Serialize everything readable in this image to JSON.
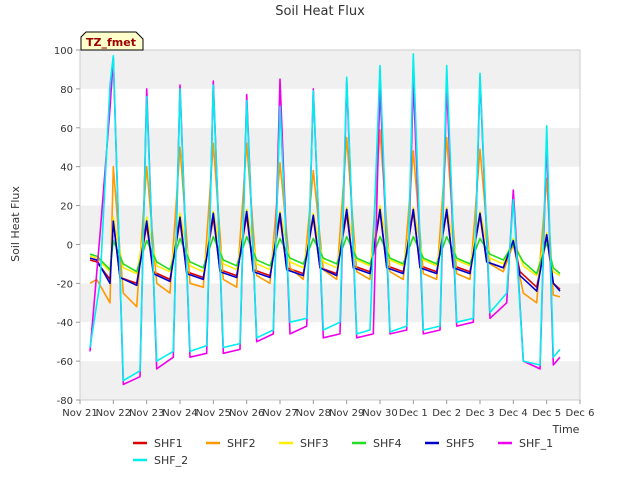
{
  "chart_data": {
    "type": "line",
    "title": "Soil Heat Flux",
    "xlabel": "Time",
    "ylabel": "Soil Heat Flux",
    "badge": "TZ_fmet",
    "xlim": [
      0,
      15
    ],
    "ylim": [
      -80,
      100
    ],
    "x_ticks": [
      {
        "v": 0,
        "label": "Nov 21"
      },
      {
        "v": 1,
        "label": "Nov 22"
      },
      {
        "v": 2,
        "label": "Nov 23"
      },
      {
        "v": 3,
        "label": "Nov 24"
      },
      {
        "v": 4,
        "label": "Nov 25"
      },
      {
        "v": 5,
        "label": "Nov 26"
      },
      {
        "v": 6,
        "label": "Nov 27"
      },
      {
        "v": 7,
        "label": "Nov 28"
      },
      {
        "v": 8,
        "label": "Nov 29"
      },
      {
        "v": 9,
        "label": "Nov 30"
      },
      {
        "v": 10,
        "label": "Dec 1"
      },
      {
        "v": 11,
        "label": "Dec 2"
      },
      {
        "v": 12,
        "label": "Dec 3"
      },
      {
        "v": 13,
        "label": "Dec 4"
      },
      {
        "v": 14,
        "label": "Dec 5"
      },
      {
        "v": 15,
        "label": "Dec 6"
      }
    ],
    "y_ticks": [
      -80,
      -60,
      -40,
      -20,
      0,
      20,
      40,
      60,
      80,
      100
    ],
    "grid": "horizontal bands",
    "legend": "bottom",
    "series_colors": {
      "SHF1": "#dd0000",
      "SHF2": "#ff9900",
      "SHF3": "#ffee00",
      "SHF4": "#22dd22",
      "SHF5": "#0000cc",
      "SHF_1": "#ee00ee",
      "SHF_2": "#00eeee"
    },
    "series": [
      {
        "name": "SHF1",
        "x": [
          0.3,
          0.5,
          0.9,
          1.0,
          1.2,
          1.7,
          2.0,
          2.2,
          2.7,
          3.0,
          3.2,
          3.7,
          4.0,
          4.2,
          4.7,
          5.0,
          5.2,
          5.7,
          6.0,
          6.2,
          6.7,
          7.0,
          7.2,
          7.7,
          8.0,
          8.2,
          8.7,
          9.0,
          9.2,
          9.7,
          10.0,
          10.2,
          10.7,
          11.0,
          11.2,
          11.7,
          12.0,
          12.2,
          12.7,
          13.0,
          13.2,
          13.7,
          14.0,
          14.2,
          14.4
        ],
        "y": [
          -8,
          -9,
          -18,
          12,
          -17,
          -20,
          10,
          -14,
          -18,
          12,
          -14,
          -17,
          14,
          -13,
          -16,
          15,
          -13,
          -16,
          14,
          -12,
          -15,
          14,
          -12,
          -15,
          16,
          -11,
          -14,
          17,
          -11,
          -14,
          17,
          -11,
          -14,
          17,
          -11,
          -14,
          15,
          -9,
          -12,
          2,
          -14,
          -22,
          4,
          -20,
          -23
        ]
      },
      {
        "name": "SHF2",
        "x": [
          0.3,
          0.5,
          0.9,
          1.0,
          1.3,
          1.7,
          2.0,
          2.3,
          2.7,
          3.0,
          3.3,
          3.7,
          4.0,
          4.3,
          4.7,
          5.0,
          5.3,
          5.7,
          6.0,
          6.3,
          6.7,
          7.0,
          7.3,
          7.7,
          8.0,
          8.3,
          8.7,
          9.0,
          9.3,
          9.7,
          10.0,
          10.3,
          10.7,
          11.0,
          11.3,
          11.7,
          12.0,
          12.3,
          12.7,
          13.0,
          13.3,
          13.7,
          14.0,
          14.2,
          14.4
        ],
        "y": [
          -20,
          -18,
          -30,
          40,
          -25,
          -32,
          40,
          -20,
          -25,
          50,
          -20,
          -22,
          52,
          -18,
          -22,
          52,
          -16,
          -20,
          42,
          -12,
          -18,
          38,
          -13,
          -18,
          55,
          -14,
          -18,
          59,
          -14,
          -18,
          48,
          -15,
          -18,
          55,
          -15,
          -18,
          49,
          -10,
          -14,
          0,
          -25,
          -30,
          34,
          -26,
          -27
        ]
      },
      {
        "name": "SHF3",
        "x": [
          0.3,
          0.5,
          0.9,
          1.0,
          1.3,
          1.7,
          2.0,
          2.3,
          2.7,
          3.0,
          3.3,
          3.7,
          4.0,
          4.3,
          4.7,
          5.0,
          5.3,
          5.7,
          6.0,
          6.3,
          6.7,
          7.0,
          7.3,
          7.7,
          8.0,
          8.3,
          8.7,
          9.0,
          9.3,
          9.7,
          10.0,
          10.3,
          10.7,
          11.0,
          11.3,
          11.7,
          12.0,
          12.3,
          12.7,
          13.0,
          13.3,
          13.7,
          14.0,
          14.2,
          14.4
        ],
        "y": [
          -6,
          -7,
          -14,
          14,
          -12,
          -15,
          14,
          -11,
          -14,
          16,
          -11,
          -14,
          17,
          -10,
          -13,
          18,
          -10,
          -13,
          17,
          -9,
          -12,
          16,
          -9,
          -12,
          19,
          -8,
          -11,
          20,
          -8,
          -11,
          19,
          -8,
          -11,
          19,
          -8,
          -11,
          17,
          -7,
          -10,
          3,
          -11,
          -16,
          6,
          -14,
          -16
        ]
      },
      {
        "name": "SHF4",
        "x": [
          0.3,
          0.5,
          0.9,
          1.0,
          1.3,
          1.7,
          2.0,
          2.3,
          2.7,
          3.0,
          3.3,
          3.7,
          4.0,
          4.3,
          4.7,
          5.0,
          5.3,
          5.7,
          6.0,
          6.3,
          6.7,
          7.0,
          7.3,
          7.7,
          8.0,
          8.3,
          8.7,
          9.0,
          9.3,
          9.7,
          10.0,
          10.3,
          10.7,
          11.0,
          11.3,
          11.7,
          12.0,
          12.3,
          12.7,
          13.0,
          13.3,
          13.7,
          14.0,
          14.2,
          14.4
        ],
        "y": [
          -5,
          -6,
          -13,
          2,
          -10,
          -14,
          2,
          -9,
          -13,
          3,
          -9,
          -12,
          4,
          -8,
          -11,
          4,
          -8,
          -11,
          3,
          -7,
          -10,
          3,
          -7,
          -10,
          4,
          -7,
          -10,
          4,
          -7,
          -10,
          4,
          -7,
          -10,
          4,
          -7,
          -10,
          3,
          -5,
          -8,
          0,
          -9,
          -15,
          1,
          -12,
          -15
        ]
      },
      {
        "name": "SHF5",
        "x": [
          0.3,
          0.5,
          0.9,
          1.0,
          1.2,
          1.7,
          2.0,
          2.2,
          2.7,
          3.0,
          3.2,
          3.7,
          4.0,
          4.2,
          4.7,
          5.0,
          5.2,
          5.7,
          6.0,
          6.2,
          6.7,
          7.0,
          7.2,
          7.7,
          8.0,
          8.2,
          8.7,
          9.0,
          9.2,
          9.7,
          10.0,
          10.2,
          10.7,
          11.0,
          11.2,
          11.7,
          12.0,
          12.2,
          12.7,
          13.0,
          13.2,
          13.7,
          14.0,
          14.2,
          14.4
        ],
        "y": [
          -7,
          -8,
          -20,
          12,
          -17,
          -21,
          12,
          -15,
          -19,
          14,
          -15,
          -18,
          16,
          -14,
          -17,
          17,
          -14,
          -17,
          16,
          -13,
          -16,
          15,
          -12,
          -16,
          18,
          -12,
          -15,
          18,
          -12,
          -15,
          18,
          -12,
          -15,
          18,
          -12,
          -15,
          16,
          -9,
          -12,
          2,
          -16,
          -24,
          5,
          -20,
          -24
        ]
      },
      {
        "name": "SHF_1",
        "x": [
          0.3,
          0.6,
          0.9,
          1.0,
          1.3,
          1.8,
          2.0,
          2.3,
          2.8,
          3.0,
          3.3,
          3.8,
          4.0,
          4.3,
          4.8,
          5.0,
          5.3,
          5.8,
          6.0,
          6.3,
          6.8,
          7.0,
          7.3,
          7.8,
          8.0,
          8.3,
          8.8,
          9.0,
          9.3,
          9.8,
          10.0,
          10.3,
          10.8,
          11.0,
          11.3,
          11.8,
          12.0,
          12.3,
          12.8,
          13.0,
          13.3,
          13.8,
          14.0,
          14.2,
          14.4
        ],
        "y": [
          -55,
          5,
          70,
          96,
          -72,
          -68,
          80,
          -64,
          -58,
          82,
          -58,
          -56,
          84,
          -56,
          -54,
          77,
          -50,
          -46,
          85,
          -46,
          -42,
          80,
          -48,
          -46,
          84,
          -48,
          -46,
          82,
          -46,
          -44,
          84,
          -46,
          -44,
          82,
          -42,
          -40,
          86,
          -38,
          -30,
          28,
          -60,
          -64,
          55,
          -62,
          -58
        ]
      },
      {
        "name": "SHF_2",
        "x": [
          0.3,
          0.6,
          0.9,
          1.0,
          1.3,
          1.8,
          2.0,
          2.3,
          2.8,
          3.0,
          3.3,
          3.8,
          4.0,
          4.3,
          4.8,
          5.0,
          5.3,
          5.8,
          6.0,
          6.3,
          6.8,
          7.0,
          7.3,
          7.8,
          8.0,
          8.3,
          8.7,
          9.0,
          9.3,
          9.8,
          10.0,
          10.3,
          10.8,
          11.0,
          11.3,
          11.8,
          12.0,
          12.3,
          12.8,
          13.0,
          13.3,
          13.8,
          14.0,
          14.2,
          14.4
        ],
        "y": [
          -53,
          -20,
          82,
          97,
          -70,
          -65,
          76,
          -60,
          -55,
          80,
          -55,
          -52,
          82,
          -53,
          -51,
          74,
          -48,
          -44,
          71,
          -40,
          -38,
          79,
          -44,
          -40,
          86,
          -46,
          -44,
          92,
          -45,
          -42,
          98,
          -44,
          -42,
          92,
          -40,
          -38,
          88,
          -35,
          -25,
          23,
          -60,
          -62,
          61,
          -58,
          -54
        ]
      }
    ]
  }
}
